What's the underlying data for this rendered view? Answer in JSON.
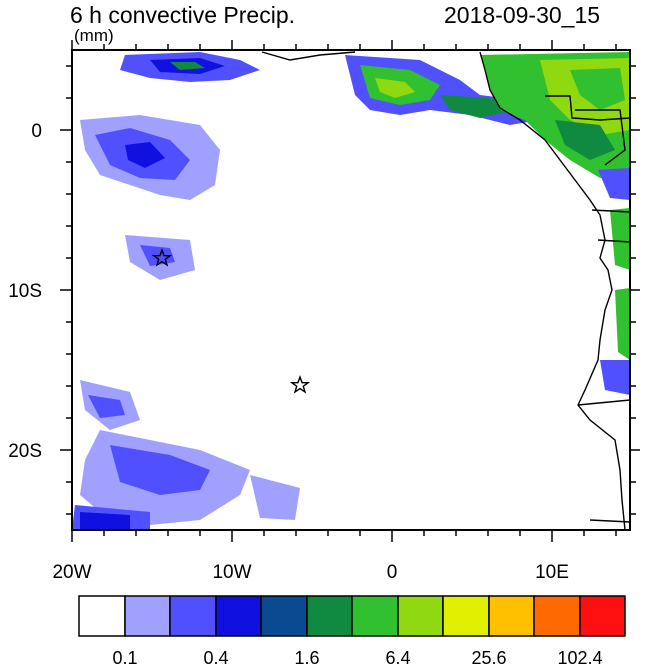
{
  "header": {
    "title": "6 h convective Precip.",
    "timestamp": "2018-09-30_15",
    "units": "(mm)"
  },
  "map": {
    "lon_labels": [
      "20W",
      "10W",
      "0",
      "10E"
    ],
    "lat_labels": [
      "0",
      "10S",
      "20S"
    ],
    "markers": [
      "star",
      "star"
    ]
  },
  "colorbar": {
    "colors": [
      "#ffffff",
      "#a0a0ff",
      "#5050ff",
      "#1010e0",
      "#0a4a90",
      "#108a40",
      "#30c030",
      "#90d810",
      "#e0f000",
      "#ffc000",
      "#ff6a00",
      "#ff1010"
    ],
    "labels": [
      "0.1",
      "0.4",
      "1.6",
      "6.4",
      "25.6",
      "102.4"
    ]
  }
}
